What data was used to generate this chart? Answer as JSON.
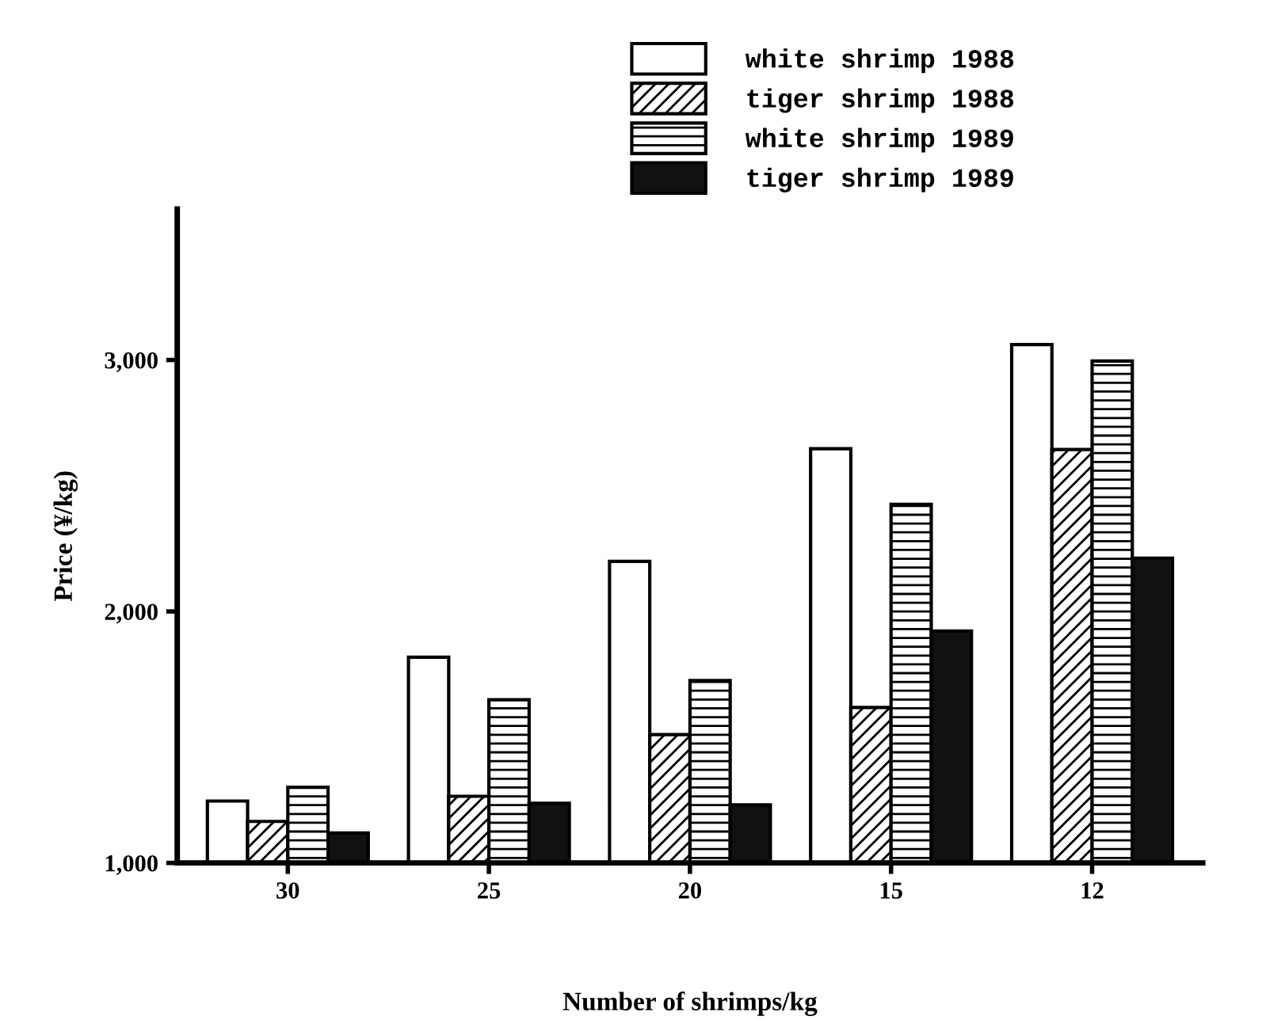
{
  "chart_data": {
    "type": "bar",
    "xlabel": "Number of shrimps/kg",
    "ylabel": "Price (¥/kg)",
    "categories": [
      "30",
      "25",
      "20",
      "15",
      "12"
    ],
    "series": [
      {
        "name": "white shrimp 1988",
        "color": "#ffffff",
        "values": [
          1246,
          1818,
          2199,
          2647,
          3061
        ]
      },
      {
        "name": "tiger shrimp 1988",
        "color": "#000000",
        "values": [
          1165,
          1265,
          1510,
          1618,
          2644
        ]
      },
      {
        "name": "white shrimp 1989",
        "color": "#000000",
        "values": [
          1301,
          1649,
          1725,
          2426,
          2996
        ]
      },
      {
        "name": "tiger shrimp 1989",
        "color": "#111111",
        "values": [
          1119,
          1237,
          1231,
          1922,
          2212
        ]
      }
    ],
    "ylim": [
      1000,
      3600
    ],
    "yticks": [
      {
        "value": 1000,
        "label": "1,000"
      },
      {
        "value": 2000,
        "label": "2,000"
      },
      {
        "value": 3000,
        "label": "3,000"
      }
    ],
    "grid": false,
    "legend": "top"
  }
}
